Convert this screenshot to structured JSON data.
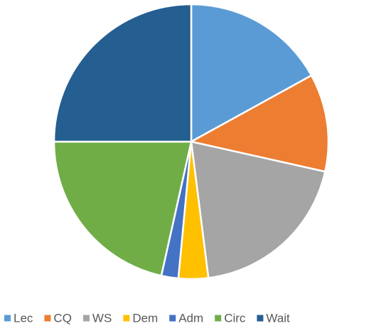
{
  "chart_data": {
    "type": "pie",
    "categories": [
      "Lec",
      "CQ",
      "WS",
      "Dem",
      "Adm",
      "Circ",
      "Wait"
    ],
    "values": [
      17,
      11.5,
      19.5,
      3.5,
      2,
      21.5,
      25
    ],
    "colors": [
      "#5b9bd5",
      "#ed7d31",
      "#a5a5a5",
      "#ffc000",
      "#4472c4",
      "#70ad47",
      "#255e91"
    ],
    "legend": "bottom"
  }
}
